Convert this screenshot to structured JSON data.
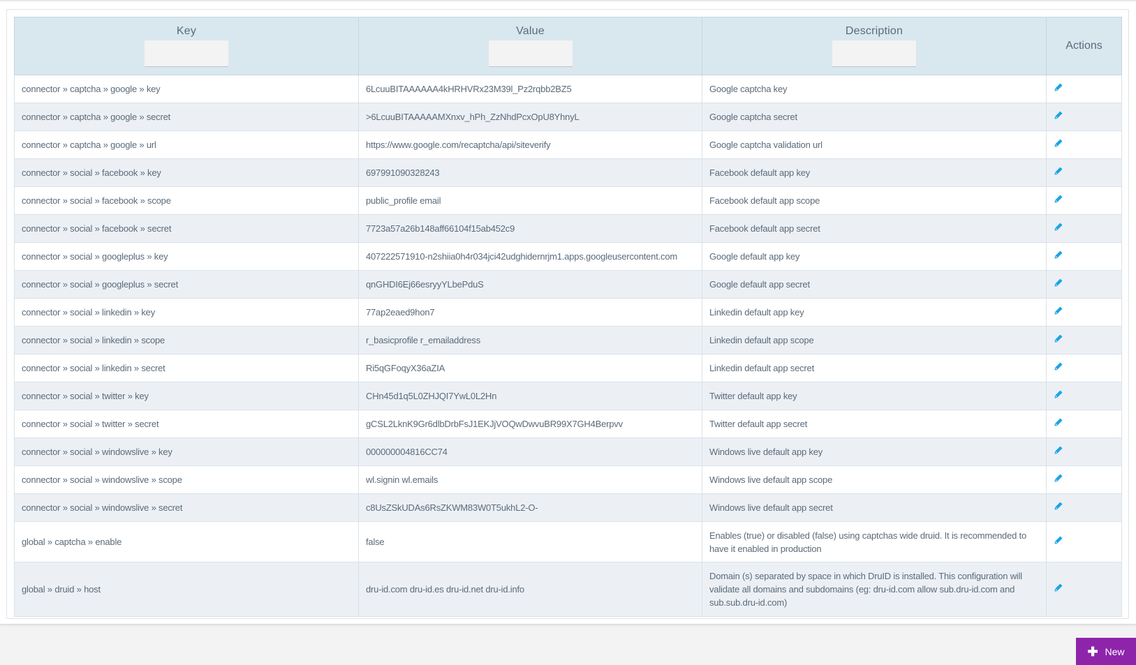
{
  "table": {
    "headers": {
      "key": "Key",
      "value": "Value",
      "description": "Description",
      "actions": "Actions"
    },
    "filters": {
      "key": "",
      "value": "",
      "description": ""
    },
    "rows": [
      {
        "key": "connector » captcha » google » key",
        "value": "6LcuuBITAAAAAA4kHRHVRx23M39l_Pz2rqbb2BZ5",
        "description": "Google captcha key"
      },
      {
        "key": "connector » captcha » google » secret",
        "value": ">6LcuuBITAAAAAMXnxv_hPh_ZzNhdPcxOpU8YhnyL",
        "description": "Google captcha secret"
      },
      {
        "key": "connector » captcha » google » url",
        "value": "https://www.google.com/recaptcha/api/siteverify",
        "description": "Google captcha validation url"
      },
      {
        "key": "connector » social » facebook » key",
        "value": "697991090328243",
        "description": "Facebook default app key"
      },
      {
        "key": "connector » social » facebook » scope",
        "value": "public_profile email",
        "description": "Facebook default app scope"
      },
      {
        "key": "connector » social » facebook » secret",
        "value": "7723a57a26b148aff66104f15ab452c9",
        "description": "Facebook default app secret"
      },
      {
        "key": "connector » social » googleplus » key",
        "value": "407222571910-n2shiia0h4r034jci42udghidernrjm1.apps.googleusercontent.com",
        "description": "Google default app key"
      },
      {
        "key": "connector » social » googleplus » secret",
        "value": "qnGHDI6Ej66esryyYLbePduS",
        "description": "Google default app secret"
      },
      {
        "key": "connector » social » linkedin » key",
        "value": "77ap2eaed9hon7",
        "description": "Linkedin default app key"
      },
      {
        "key": "connector » social » linkedin » scope",
        "value": "r_basicprofile r_emailaddress",
        "description": "Linkedin default app scope"
      },
      {
        "key": "connector » social » linkedin » secret",
        "value": "Ri5qGFoqyX36aZIA",
        "description": "Linkedin default app secret"
      },
      {
        "key": "connector » social » twitter » key",
        "value": "CHn45d1q5L0ZHJQI7YwL0L2Hn",
        "description": "Twitter default app key"
      },
      {
        "key": "connector » social » twitter » secret",
        "value": "gCSL2LknK9Gr6dlbDrbFsJ1EKJjVOQwDwvuBR99X7GH4Berpvv",
        "description": "Twitter default app secret"
      },
      {
        "key": "connector » social » windowslive » key",
        "value": "000000004816CC74",
        "description": "Windows live default app key"
      },
      {
        "key": "connector » social » windowslive » scope",
        "value": "wl.signin wl.emails",
        "description": "Windows live default app scope"
      },
      {
        "key": "connector » social » windowslive » secret",
        "value": "c8UsZSkUDAs6RsZKWM83W0T5ukhL2-O-",
        "description": "Windows live default app secret"
      },
      {
        "key": "global » captcha » enable",
        "value": "false",
        "description": "Enables (true) or disabled (false) using captchas wide druid. It is recommended to have it enabled in production"
      },
      {
        "key": "global » druid » host",
        "value": "dru-id.com dru-id.es dru-id.net dru-id.info",
        "description": "Domain (s) separated by space in which DruID is installed. This configuration will validate all domains and subdomains (eg: dru-id.com allow sub.dru-id.com and sub.sub.dru-id.com)"
      }
    ],
    "edit_icon": "pencil-icon",
    "edit_color": "#1aa3e8"
  },
  "footer": {
    "new_label": "New",
    "new_icon": "plus-icon",
    "new_color": "#8e24aa"
  }
}
